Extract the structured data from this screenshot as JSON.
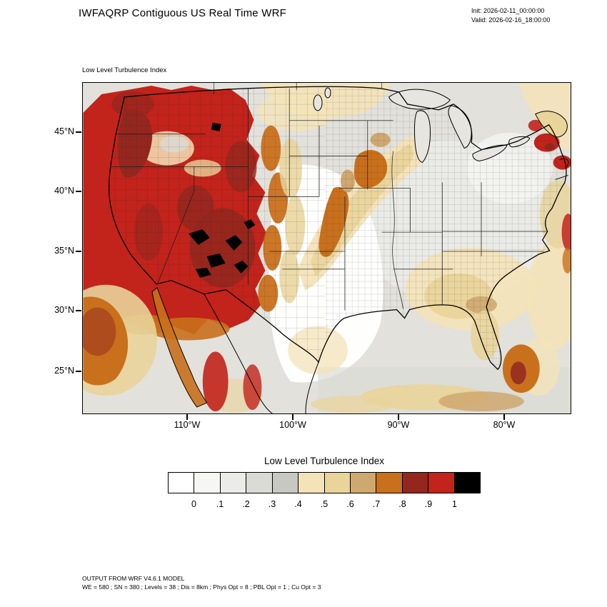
{
  "header": {
    "title": "IWFAQRP Contiguous US Real Time WRF",
    "init_label": "Init: 2026-02-11_00:00:00",
    "valid_label": "Valid: 2026-02-16_18:00:00"
  },
  "map": {
    "field_label": "Low Level Turbulence Index",
    "lat_ticks": [
      "45°N",
      "40°N",
      "35°N",
      "30°N",
      "25°N"
    ],
    "lon_ticks": [
      "110°W",
      "100°W",
      "90°W",
      "80°W"
    ]
  },
  "colorbar": {
    "title": "Low Level Turbulence Index",
    "tick_labels": [
      "0",
      ".1",
      ".2",
      ".3",
      ".4",
      ".5",
      ".6",
      ".7",
      ".8",
      ".9",
      "1"
    ],
    "colors": [
      "#ffffff",
      "#f6f6f3",
      "#ebebe7",
      "#dbdbd6",
      "#c8c8c3",
      "#f4e3b8",
      "#e9d49a",
      "#cfa870",
      "#c9701c",
      "#93271e",
      "#c2231b",
      "#000000"
    ]
  },
  "footer": {
    "line1": "OUTPUT FROM WRF V4.6.1 MODEL",
    "line2": "WE = 580 ; SN = 380 ; Levels = 38 ; Dis = 8km ; Phys Opt = 8 ; PBL Opt = 1 ; Cu Opt = 3"
  },
  "chart_data": {
    "type": "heatmap",
    "title": "Low Level Turbulence Index",
    "subtitle": "IWFAQRP Contiguous US Real Time WRF",
    "init_time": "2026-02-11_00:00:00",
    "valid_time": "2026-02-16_18:00:00",
    "x_axis": {
      "label": "longitude",
      "ticks": [
        "110°W",
        "100°W",
        "90°W",
        "80°W"
      ]
    },
    "y_axis": {
      "label": "latitude",
      "ticks": [
        "45°N",
        "40°N",
        "35°N",
        "30°N",
        "25°N"
      ]
    },
    "colorscale": {
      "levels": [
        0,
        0.1,
        0.2,
        0.3,
        0.4,
        0.5,
        0.6,
        0.7,
        0.8,
        0.9,
        1
      ],
      "colors": [
        "#ffffff",
        "#f6f6f3",
        "#ebebe7",
        "#dbdbd6",
        "#c8c8c3",
        "#f4e3b8",
        "#e9d49a",
        "#cfa870",
        "#c9701c",
        "#93271e",
        "#c2231b",
        "#000000"
      ],
      "orientation": "horizontal",
      "position": "below plot"
    },
    "overlays": [
      "US national border",
      "state boundaries",
      "county boundaries",
      "coastlines",
      "Great Lakes"
    ],
    "regions": [
      {
        "area": "Pacific Northwest coast and northern Rockies",
        "value_range": "0.8-1.0",
        "note": "widespread red with dark-red coastal maxima"
      },
      {
        "area": "Great Basin / Colorado Plateau / Rockies (NV-UT-CO)",
        "value_range": "0.9-1.0+",
        "note": "red with embedded dark red and black (>1) cores over Colorado/Utah"
      },
      {
        "area": "Eastern fringe of mountain west (high plains edge)",
        "value_range": "0.5-0.8",
        "note": "orange and tan transition band"
      },
      {
        "area": "Pacific Ocean off Baja California",
        "value_range": "0.7-0.8",
        "note": "large orange blob in lower-left corner"
      },
      {
        "area": "Central and southern Great Plains, lower Mississippi valley",
        "value_range": "0.0-0.2",
        "note": "near-white minimum"
      },
      {
        "area": "Diagonal band Kansas to Wisconsin/Michigan",
        "value_range": "0.4-0.8",
        "note": "tan band with orange cores over Iowa/Missouri/Wisconsin"
      },
      {
        "area": "Southeast (Alabama/Georgia/Florida)",
        "value_range": "0.4-0.7",
        "note": "tan with small brown patches"
      },
      {
        "area": "Gulf of Mexico coastal waters",
        "value_range": "0.3-0.7",
        "note": "gray-tan band with brown patches"
      },
      {
        "area": "Atlantic off Florida east coast",
        "value_range": "0.7-0.9",
        "note": "orange blob with dark-red core"
      },
      {
        "area": "New England / Canadian Maritimes",
        "value_range": "0.4-1.0",
        "note": "tan with scattered red patches top right"
      },
      {
        "area": "Ohio valley and mid-Atlantic",
        "value_range": "0.1-0.4",
        "note": "light gray with dense county grid"
      }
    ]
  }
}
